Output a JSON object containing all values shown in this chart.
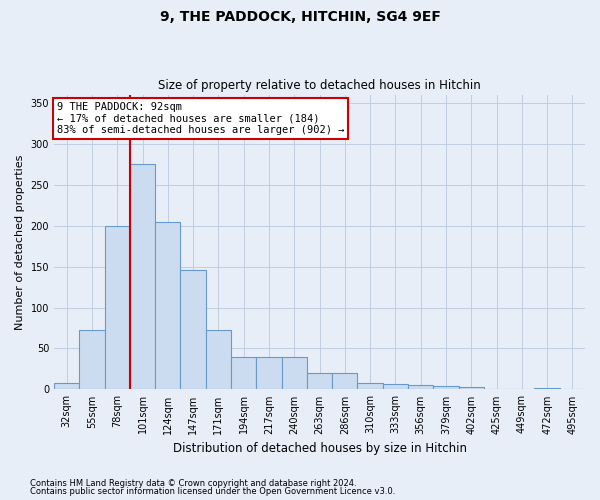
{
  "title": "9, THE PADDOCK, HITCHIN, SG4 9EF",
  "subtitle": "Size of property relative to detached houses in Hitchin",
  "xlabel": "Distribution of detached houses by size in Hitchin",
  "ylabel": "Number of detached properties",
  "categories": [
    "32sqm",
    "55sqm",
    "78sqm",
    "101sqm",
    "124sqm",
    "147sqm",
    "171sqm",
    "194sqm",
    "217sqm",
    "240sqm",
    "263sqm",
    "286sqm",
    "310sqm",
    "333sqm",
    "356sqm",
    "379sqm",
    "402sqm",
    "425sqm",
    "449sqm",
    "472sqm",
    "495sqm"
  ],
  "bar_heights": [
    8,
    73,
    200,
    275,
    204,
    146,
    73,
    40,
    39,
    39,
    20,
    20,
    8,
    7,
    6,
    4,
    3,
    1,
    0,
    2,
    0
  ],
  "bar_color": "#ccdcf0",
  "bar_edge_color": "#6699cc",
  "grid_color": "#c0cce0",
  "background_color": "#e8eef8",
  "vline_color": "#cc0000",
  "vline_x_index": 3,
  "annotation_text": "9 THE PADDOCK: 92sqm\n← 17% of detached houses are smaller (184)\n83% of semi-detached houses are larger (902) →",
  "annotation_box_facecolor": "#ffffff",
  "annotation_box_edgecolor": "#cc0000",
  "footnote1": "Contains HM Land Registry data © Crown copyright and database right 2024.",
  "footnote2": "Contains public sector information licensed under the Open Government Licence v3.0.",
  "ylim": [
    0,
    360
  ],
  "yticks": [
    0,
    50,
    100,
    150,
    200,
    250,
    300,
    350
  ],
  "title_fontsize": 10,
  "subtitle_fontsize": 8.5,
  "ylabel_fontsize": 8,
  "xlabel_fontsize": 8.5,
  "tick_fontsize": 7,
  "footnote_fontsize": 6
}
